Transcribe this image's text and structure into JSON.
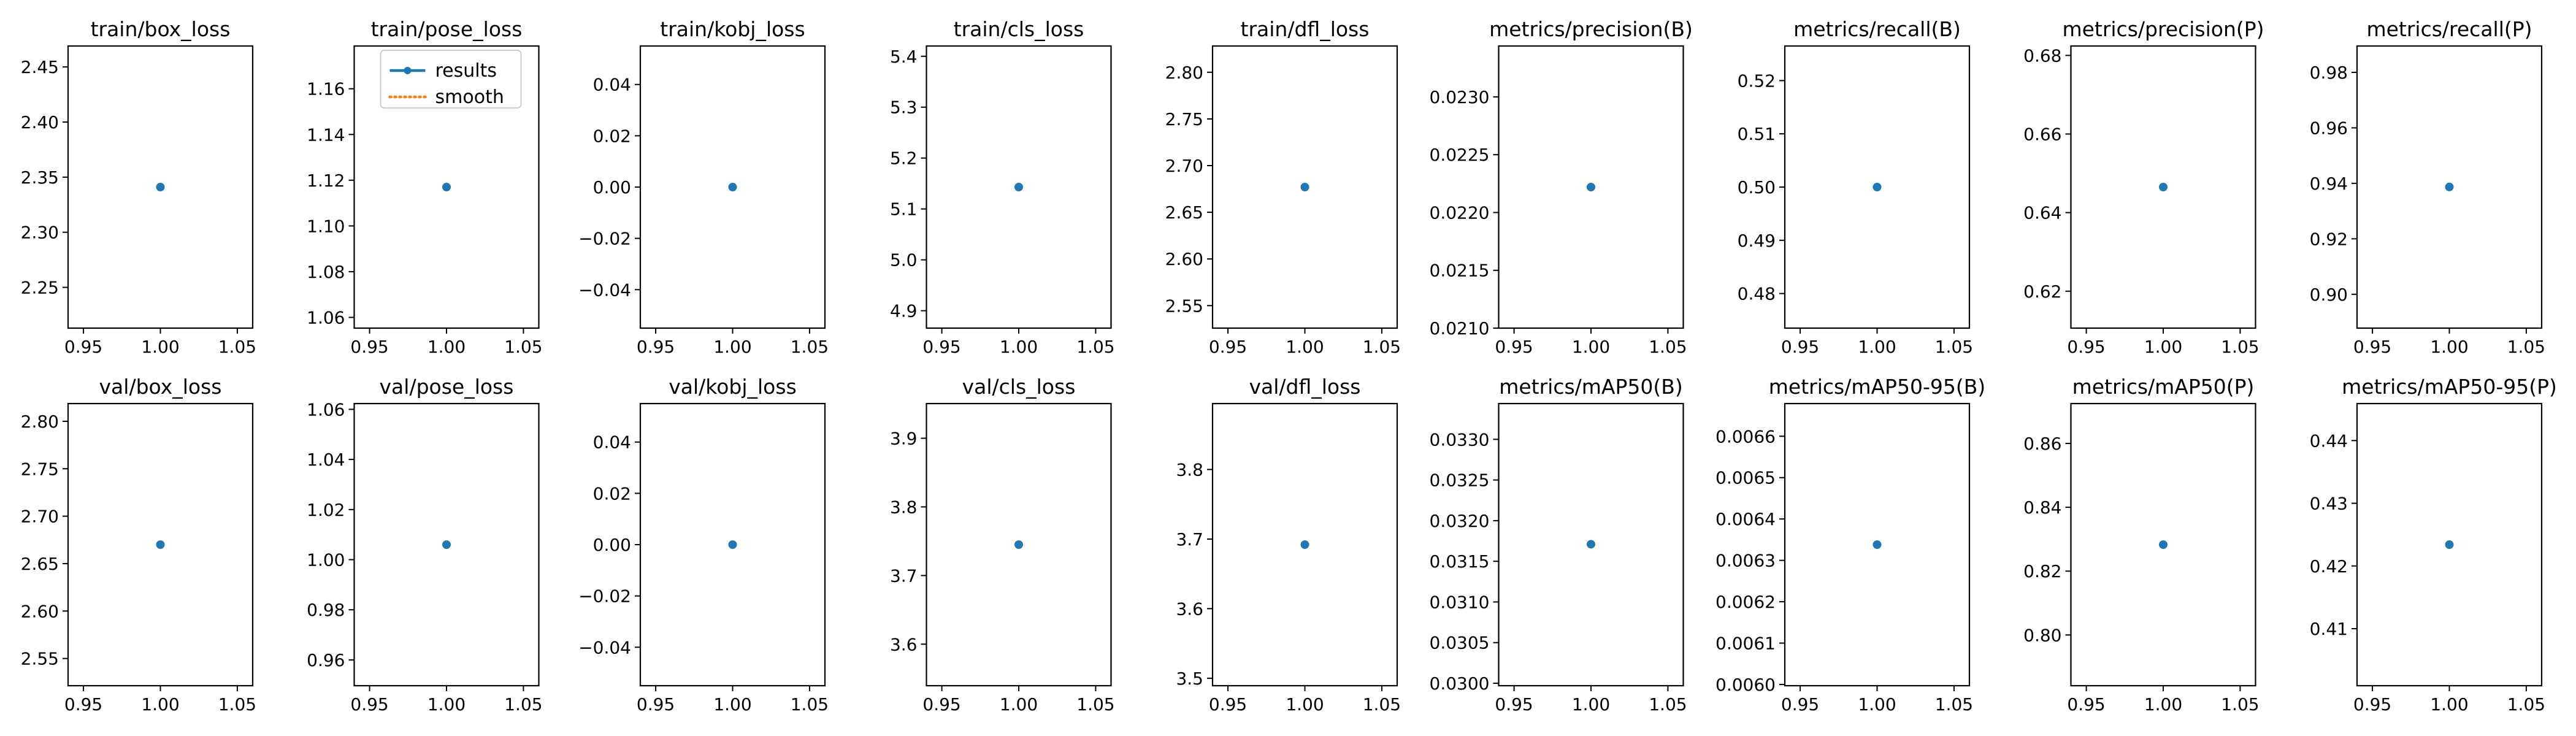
{
  "colors": {
    "results": "#1f77b4",
    "smooth": "#ff7f0e"
  },
  "legend": {
    "placement": "upper-center",
    "entries": [
      {
        "label": "results",
        "style": "line-marker"
      },
      {
        "label": "smooth",
        "style": "dotted"
      }
    ]
  },
  "chart_data": [
    {
      "type": "scatter",
      "title": "train/box_loss",
      "x": [
        1
      ],
      "y": [
        2.341
      ],
      "xlim": [
        0.94,
        1.06
      ],
      "ylim": [
        2.213,
        2.469
      ],
      "xticks": [
        "0.95",
        "1.00",
        "1.05"
      ],
      "yticks": [
        "2.25",
        "2.30",
        "2.35",
        "2.40",
        "2.45"
      ],
      "series": [
        {
          "name": "results",
          "x": [
            1
          ],
          "y": [
            2.341
          ]
        }
      ]
    },
    {
      "type": "scatter",
      "title": "train/pose_loss",
      "x": [
        1
      ],
      "y": [
        1.117
      ],
      "xlim": [
        0.94,
        1.06
      ],
      "ylim": [
        1.0553,
        1.1787
      ],
      "xticks": [
        "0.95",
        "1.00",
        "1.05"
      ],
      "yticks": [
        "1.06",
        "1.08",
        "1.10",
        "1.12",
        "1.14",
        "1.16"
      ],
      "series": [
        {
          "name": "results",
          "x": [
            1
          ],
          "y": [
            1.117
          ]
        }
      ]
    },
    {
      "type": "scatter",
      "title": "train/kobj_loss",
      "x": [
        1
      ],
      "y": [
        0.0
      ],
      "xlim": [
        0.94,
        1.06
      ],
      "ylim": [
        -0.055,
        0.055
      ],
      "xticks": [
        "0.95",
        "1.00",
        "1.05"
      ],
      "yticks": [
        "−0.04",
        "−0.02",
        "0.00",
        "0.02",
        "0.04"
      ],
      "series": [
        {
          "name": "results",
          "x": [
            1
          ],
          "y": [
            0.0
          ]
        }
      ]
    },
    {
      "type": "scatter",
      "title": "train/cls_loss",
      "x": [
        1
      ],
      "y": [
        5.143
      ],
      "xlim": [
        0.94,
        1.06
      ],
      "ylim": [
        4.8658,
        5.4202
      ],
      "xticks": [
        "0.95",
        "1.00",
        "1.05"
      ],
      "yticks": [
        "4.9",
        "5.0",
        "5.1",
        "5.2",
        "5.3",
        "5.4"
      ],
      "series": [
        {
          "name": "results",
          "x": [
            1
          ],
          "y": [
            5.143
          ]
        }
      ]
    },
    {
      "type": "scatter",
      "title": "train/dfl_loss",
      "x": [
        1
      ],
      "y": [
        2.677
      ],
      "xlim": [
        0.94,
        1.06
      ],
      "ylim": [
        2.5259,
        2.8281
      ],
      "xticks": [
        "0.95",
        "1.00",
        "1.05"
      ],
      "yticks": [
        "2.55",
        "2.60",
        "2.65",
        "2.70",
        "2.75",
        "2.80"
      ],
      "series": [
        {
          "name": "results",
          "x": [
            1
          ],
          "y": [
            2.677
          ]
        }
      ]
    },
    {
      "type": "scatter",
      "title": "metrics/precision(B)",
      "x": [
        1
      ],
      "y": [
        0.02222
      ],
      "xlim": [
        0.94,
        1.06
      ],
      "ylim": [
        0.021,
        0.02344
      ],
      "xticks": [
        "0.95",
        "1.00",
        "1.05"
      ],
      "yticks": [
        "0.0210",
        "0.0215",
        "0.0220",
        "0.0225",
        "0.0230"
      ],
      "series": [
        {
          "name": "results",
          "x": [
            1
          ],
          "y": [
            0.02222
          ]
        }
      ]
    },
    {
      "type": "scatter",
      "title": "metrics/recall(B)",
      "x": [
        1
      ],
      "y": [
        0.5
      ],
      "xlim": [
        0.94,
        1.06
      ],
      "ylim": [
        0.4735,
        0.5265
      ],
      "xticks": [
        "0.95",
        "1.00",
        "1.05"
      ],
      "yticks": [
        "0.48",
        "0.49",
        "0.50",
        "0.51",
        "0.52"
      ],
      "series": [
        {
          "name": "results",
          "x": [
            1
          ],
          "y": [
            0.5
          ]
        }
      ]
    },
    {
      "type": "scatter",
      "title": "metrics/precision(P)",
      "x": [
        1
      ],
      "y": [
        0.6465
      ],
      "xlim": [
        0.94,
        1.06
      ],
      "ylim": [
        0.6106,
        0.6824
      ],
      "xticks": [
        "0.95",
        "1.00",
        "1.05"
      ],
      "yticks": [
        "0.62",
        "0.64",
        "0.66",
        "0.68"
      ],
      "series": [
        {
          "name": "results",
          "x": [
            1
          ],
          "y": [
            0.6465
          ]
        }
      ]
    },
    {
      "type": "scatter",
      "title": "metrics/recall(P)",
      "x": [
        1
      ],
      "y": [
        0.9387
      ],
      "xlim": [
        0.94,
        1.06
      ],
      "ylim": [
        0.8878,
        0.9895
      ],
      "xticks": [
        "0.95",
        "1.00",
        "1.05"
      ],
      "yticks": [
        "0.90",
        "0.92",
        "0.94",
        "0.96",
        "0.98"
      ],
      "series": [
        {
          "name": "results",
          "x": [
            1
          ],
          "y": [
            0.9387
          ]
        }
      ]
    },
    {
      "type": "scatter",
      "title": "val/box_loss",
      "x": [
        1
      ],
      "y": [
        2.67
      ],
      "xlim": [
        0.94,
        1.06
      ],
      "ylim": [
        2.5213,
        2.8187
      ],
      "xticks": [
        "0.95",
        "1.00",
        "1.05"
      ],
      "yticks": [
        "2.55",
        "2.60",
        "2.65",
        "2.70",
        "2.75",
        "2.80"
      ],
      "series": [
        {
          "name": "results",
          "x": [
            1
          ],
          "y": [
            2.67
          ]
        }
      ]
    },
    {
      "type": "scatter",
      "title": "val/pose_loss",
      "x": [
        1
      ],
      "y": [
        1.006
      ],
      "xlim": [
        0.94,
        1.06
      ],
      "ylim": [
        0.9497,
        1.0623
      ],
      "xticks": [
        "0.95",
        "1.00",
        "1.05"
      ],
      "yticks": [
        "0.96",
        "0.98",
        "1.00",
        "1.02",
        "1.04",
        "1.06"
      ],
      "series": [
        {
          "name": "results",
          "x": [
            1
          ],
          "y": [
            1.006
          ]
        }
      ]
    },
    {
      "type": "scatter",
      "title": "val/kobj_loss",
      "x": [
        1
      ],
      "y": [
        0.0
      ],
      "xlim": [
        0.94,
        1.06
      ],
      "ylim": [
        -0.055,
        0.055
      ],
      "xticks": [
        "0.95",
        "1.00",
        "1.05"
      ],
      "yticks": [
        "−0.04",
        "−0.02",
        "0.00",
        "0.02",
        "0.04"
      ],
      "series": [
        {
          "name": "results",
          "x": [
            1
          ],
          "y": [
            0.0
          ]
        }
      ]
    },
    {
      "type": "scatter",
      "title": "val/cls_loss",
      "x": [
        1
      ],
      "y": [
        3.745
      ],
      "xlim": [
        0.94,
        1.06
      ],
      "ylim": [
        3.5395,
        3.9505
      ],
      "xticks": [
        "0.95",
        "1.00",
        "1.05"
      ],
      "yticks": [
        "3.6",
        "3.7",
        "3.8",
        "3.9"
      ],
      "series": [
        {
          "name": "results",
          "x": [
            1
          ],
          "y": [
            3.745
          ]
        }
      ]
    },
    {
      "type": "scatter",
      "title": "val/dfl_loss",
      "x": [
        1
      ],
      "y": [
        3.692
      ],
      "xlim": [
        0.94,
        1.06
      ],
      "ylim": [
        3.4893,
        3.8947
      ],
      "xticks": [
        "0.95",
        "1.00",
        "1.05"
      ],
      "yticks": [
        "3.5",
        "3.6",
        "3.7",
        "3.8"
      ],
      "series": [
        {
          "name": "results",
          "x": [
            1
          ],
          "y": [
            3.692
          ]
        }
      ]
    },
    {
      "type": "scatter",
      "title": "metrics/mAP50(B)",
      "x": [
        1
      ],
      "y": [
        0.03171
      ],
      "xlim": [
        0.94,
        1.06
      ],
      "ylim": [
        0.02997,
        0.03344
      ],
      "xticks": [
        "0.95",
        "1.00",
        "1.05"
      ],
      "yticks": [
        "0.0300",
        "0.0305",
        "0.0310",
        "0.0315",
        "0.0320",
        "0.0325",
        "0.0330"
      ],
      "series": [
        {
          "name": "results",
          "x": [
            1
          ],
          "y": [
            0.03171
          ]
        }
      ]
    },
    {
      "type": "scatter",
      "title": "metrics/mAP50-95(B)",
      "x": [
        1
      ],
      "y": [
        0.006338
      ],
      "xlim": [
        0.94,
        1.06
      ],
      "ylim": [
        0.005997,
        0.006679
      ],
      "xticks": [
        "0.95",
        "1.00",
        "1.05"
      ],
      "yticks": [
        "0.0060",
        "0.0061",
        "0.0062",
        "0.0063",
        "0.0064",
        "0.0065",
        "0.0066"
      ],
      "series": [
        {
          "name": "results",
          "x": [
            1
          ],
          "y": [
            0.006338
          ]
        }
      ]
    },
    {
      "type": "scatter",
      "title": "metrics/mAP50(P)",
      "x": [
        1
      ],
      "y": [
        0.8283
      ],
      "xlim": [
        0.94,
        1.06
      ],
      "ylim": [
        0.7841,
        0.8725
      ],
      "xticks": [
        "0.95",
        "1.00",
        "1.05"
      ],
      "yticks": [
        "0.80",
        "0.82",
        "0.84",
        "0.86"
      ],
      "series": [
        {
          "name": "results",
          "x": [
            1
          ],
          "y": [
            0.8283
          ]
        }
      ]
    },
    {
      "type": "scatter",
      "title": "metrics/mAP50-95(P)",
      "x": [
        1
      ],
      "y": [
        0.4234
      ],
      "xlim": [
        0.94,
        1.06
      ],
      "ylim": [
        0.4009,
        0.4459
      ],
      "xticks": [
        "0.95",
        "1.00",
        "1.05"
      ],
      "yticks": [
        "0.41",
        "0.42",
        "0.43",
        "0.44"
      ],
      "series": [
        {
          "name": "results",
          "x": [
            1
          ],
          "y": [
            0.4234
          ]
        }
      ]
    }
  ]
}
